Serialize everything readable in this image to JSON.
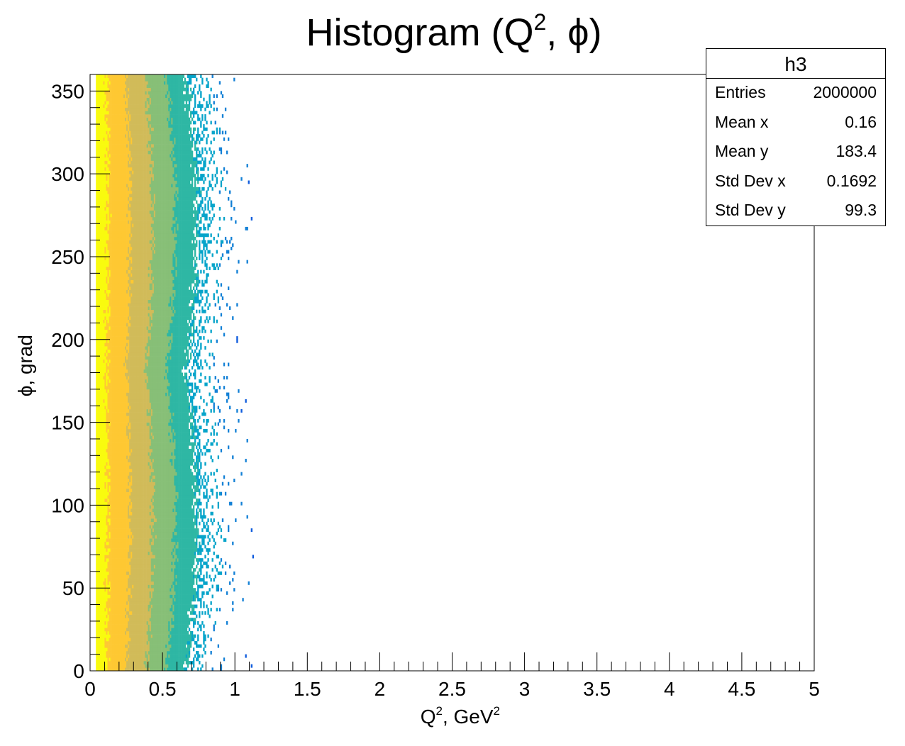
{
  "chart_data": {
    "type": "heatmap",
    "title": "Histogram (Q², ϕ)",
    "title_main": "Histogram (Q",
    "title_sup": "2",
    "title_tail": ", ϕ)",
    "xlabel_main": "Q",
    "xlabel_sup": "2",
    "xlabel_mid": ", GeV",
    "xlabel_sup2": "2",
    "ylabel": "ϕ, grad",
    "xlim": [
      0,
      5
    ],
    "ylim": [
      0,
      360
    ],
    "x_ticks": [
      "0",
      "0.5",
      "1",
      "1.5",
      "2",
      "2.5",
      "3",
      "3.5",
      "4",
      "4.5",
      "5"
    ],
    "x_tick_values": [
      0,
      0.5,
      1,
      1.5,
      2,
      2.5,
      3,
      3.5,
      4,
      4.5,
      5
    ],
    "y_ticks": [
      "0",
      "50",
      "100",
      "150",
      "200",
      "250",
      "300",
      "350"
    ],
    "y_tick_values": [
      0,
      50,
      100,
      150,
      200,
      250,
      300,
      350
    ],
    "distribution": {
      "description_values": "density highest near x=0.05, decaying with x; sparse beyond x≈0.8; extends to about x≈1.1",
      "x_peak": 0.05,
      "x_extent": 1.12,
      "phi_modulation": "slight, more spread near phi≈90 and phi≈270"
    },
    "colormap": [
      "#352a87",
      "#0f5cdd",
      "#1481d6",
      "#06a4ca",
      "#2eb7a4",
      "#87bf77",
      "#d1bb59",
      "#fec832",
      "#f9fb0e"
    ],
    "grid": false,
    "legend": "none",
    "stats": {
      "title": "h3",
      "rows": [
        {
          "label": "Entries",
          "value": "2000000"
        },
        {
          "label": "Mean x",
          "value": "0.16"
        },
        {
          "label": "Mean y",
          "value": "183.4"
        },
        {
          "label": "Std Dev x",
          "value": "0.1692"
        },
        {
          "label": "Std Dev y",
          "value": "99.3"
        }
      ]
    }
  }
}
